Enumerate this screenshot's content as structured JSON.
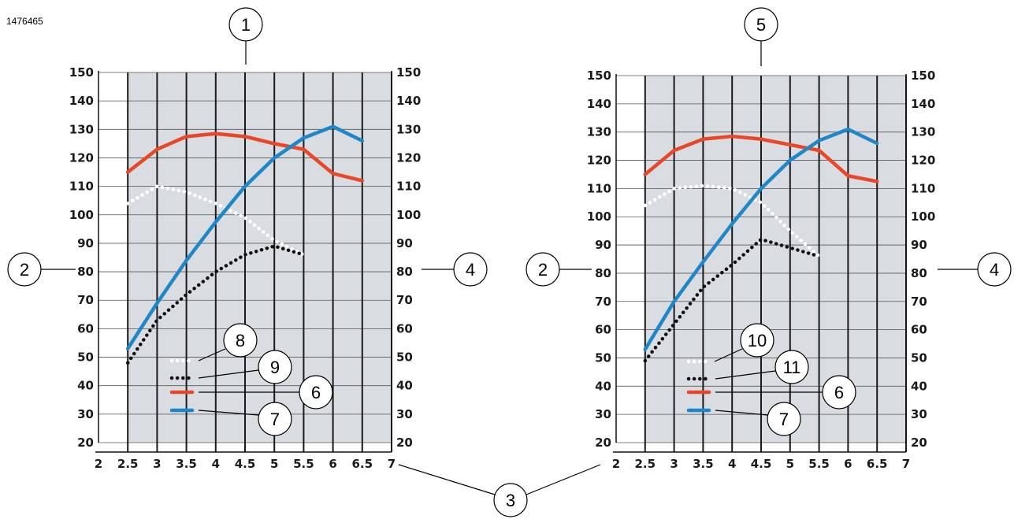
{
  "image_id": "1476465",
  "colors": {
    "plot_bg": "#d9dde1",
    "grid": "#1a1a1a",
    "red": "#e8482a",
    "blue": "#1f86c8",
    "white_dot": "#ffffff",
    "black_dot": "#111111"
  },
  "callouts": [
    "1",
    "2",
    "3",
    "4",
    "5",
    "6",
    "7",
    "8",
    "9",
    "10",
    "11"
  ],
  "chart_data": [
    {
      "type": "line",
      "callout_top": "1",
      "x": [
        2,
        2.5,
        3,
        3.5,
        4,
        4.5,
        5,
        5.5,
        6,
        6.5,
        7
      ],
      "x_tick_labels": [
        "2",
        "2.5",
        "3",
        "3.5",
        "4",
        "4.5",
        "5",
        "5.5",
        "6",
        "6.5",
        "7"
      ],
      "xlim": [
        2,
        7
      ],
      "ylim": [
        20,
        150
      ],
      "y_tick_labels": [
        "20",
        "30",
        "40",
        "50",
        "60",
        "70",
        "80",
        "90",
        "100",
        "110",
        "120",
        "130",
        "140",
        "150"
      ],
      "y2_tick_labels": [
        "20",
        "30",
        "40",
        "50",
        "60",
        "70",
        "80",
        "90",
        "100",
        "110",
        "120",
        "130",
        "140",
        "150"
      ],
      "grid": true,
      "series": [
        {
          "callout": "8",
          "color": "#ffffff",
          "style": "dotted",
          "x": [
            2.5,
            3,
            3.5,
            4,
            4.5,
            5,
            5.5
          ],
          "y": [
            104,
            110,
            108,
            104,
            99,
            91,
            86
          ]
        },
        {
          "callout": "9",
          "color": "#111111",
          "style": "dotted",
          "x": [
            2.5,
            3,
            3.5,
            4,
            4.5,
            5,
            5.5
          ],
          "y": [
            48,
            63,
            72,
            80,
            86,
            89,
            86
          ]
        },
        {
          "callout": "6",
          "color": "#e8482a",
          "style": "solid",
          "x": [
            2.5,
            3,
            3.5,
            4,
            4.5,
            5,
            5.5,
            6,
            6.5
          ],
          "y": [
            115,
            123,
            127.5,
            128.5,
            127.5,
            125,
            123,
            114.5,
            112
          ]
        },
        {
          "callout": "7",
          "color": "#1f86c8",
          "style": "solid",
          "x": [
            2.5,
            3,
            3.5,
            4,
            4.5,
            5,
            5.5,
            6,
            6.5
          ],
          "y": [
            53,
            69,
            84,
            97.5,
            110,
            120,
            127,
            131,
            126
          ]
        }
      ]
    },
    {
      "type": "line",
      "callout_top": "5",
      "x": [
        2,
        2.5,
        3,
        3.5,
        4,
        4.5,
        5,
        5.5,
        6,
        6.5,
        7
      ],
      "x_tick_labels": [
        "2",
        "2.5",
        "3",
        "3.5",
        "4",
        "4.5",
        "5",
        "5.5",
        "6",
        "6.5",
        "7"
      ],
      "xlim": [
        2,
        7
      ],
      "ylim": [
        20,
        150
      ],
      "y_tick_labels": [
        "20",
        "30",
        "40",
        "50",
        "60",
        "70",
        "80",
        "90",
        "100",
        "110",
        "120",
        "130",
        "140",
        "150"
      ],
      "y2_tick_labels": [
        "20",
        "30",
        "40",
        "50",
        "60",
        "70",
        "80",
        "90",
        "100",
        "110",
        "120",
        "130",
        "140",
        "150"
      ],
      "grid": true,
      "series": [
        {
          "callout": "10",
          "color": "#ffffff",
          "style": "dotted",
          "x": [
            2.5,
            3,
            3.5,
            4,
            4.5,
            5,
            5.5
          ],
          "y": [
            104,
            110,
            111,
            110,
            105,
            95,
            86
          ]
        },
        {
          "callout": "11",
          "color": "#111111",
          "style": "dotted",
          "x": [
            2.5,
            3,
            3.5,
            4,
            4.5,
            5,
            5.5
          ],
          "y": [
            49,
            62,
            75,
            83,
            92,
            89,
            86
          ]
        },
        {
          "callout": "6",
          "color": "#e8482a",
          "style": "solid",
          "x": [
            2.5,
            3,
            3.5,
            4,
            4.5,
            5,
            5.5,
            6,
            6.5
          ],
          "y": [
            115,
            123.5,
            127.5,
            128.5,
            127.5,
            125.5,
            123.5,
            114.5,
            112.5
          ]
        },
        {
          "callout": "7",
          "color": "#1f86c8",
          "style": "solid",
          "x": [
            2.5,
            3,
            3.5,
            4,
            4.5,
            5,
            5.5,
            6,
            6.5
          ],
          "y": [
            53,
            70,
            84,
            97.5,
            110,
            120,
            127,
            131,
            126
          ]
        }
      ]
    }
  ]
}
